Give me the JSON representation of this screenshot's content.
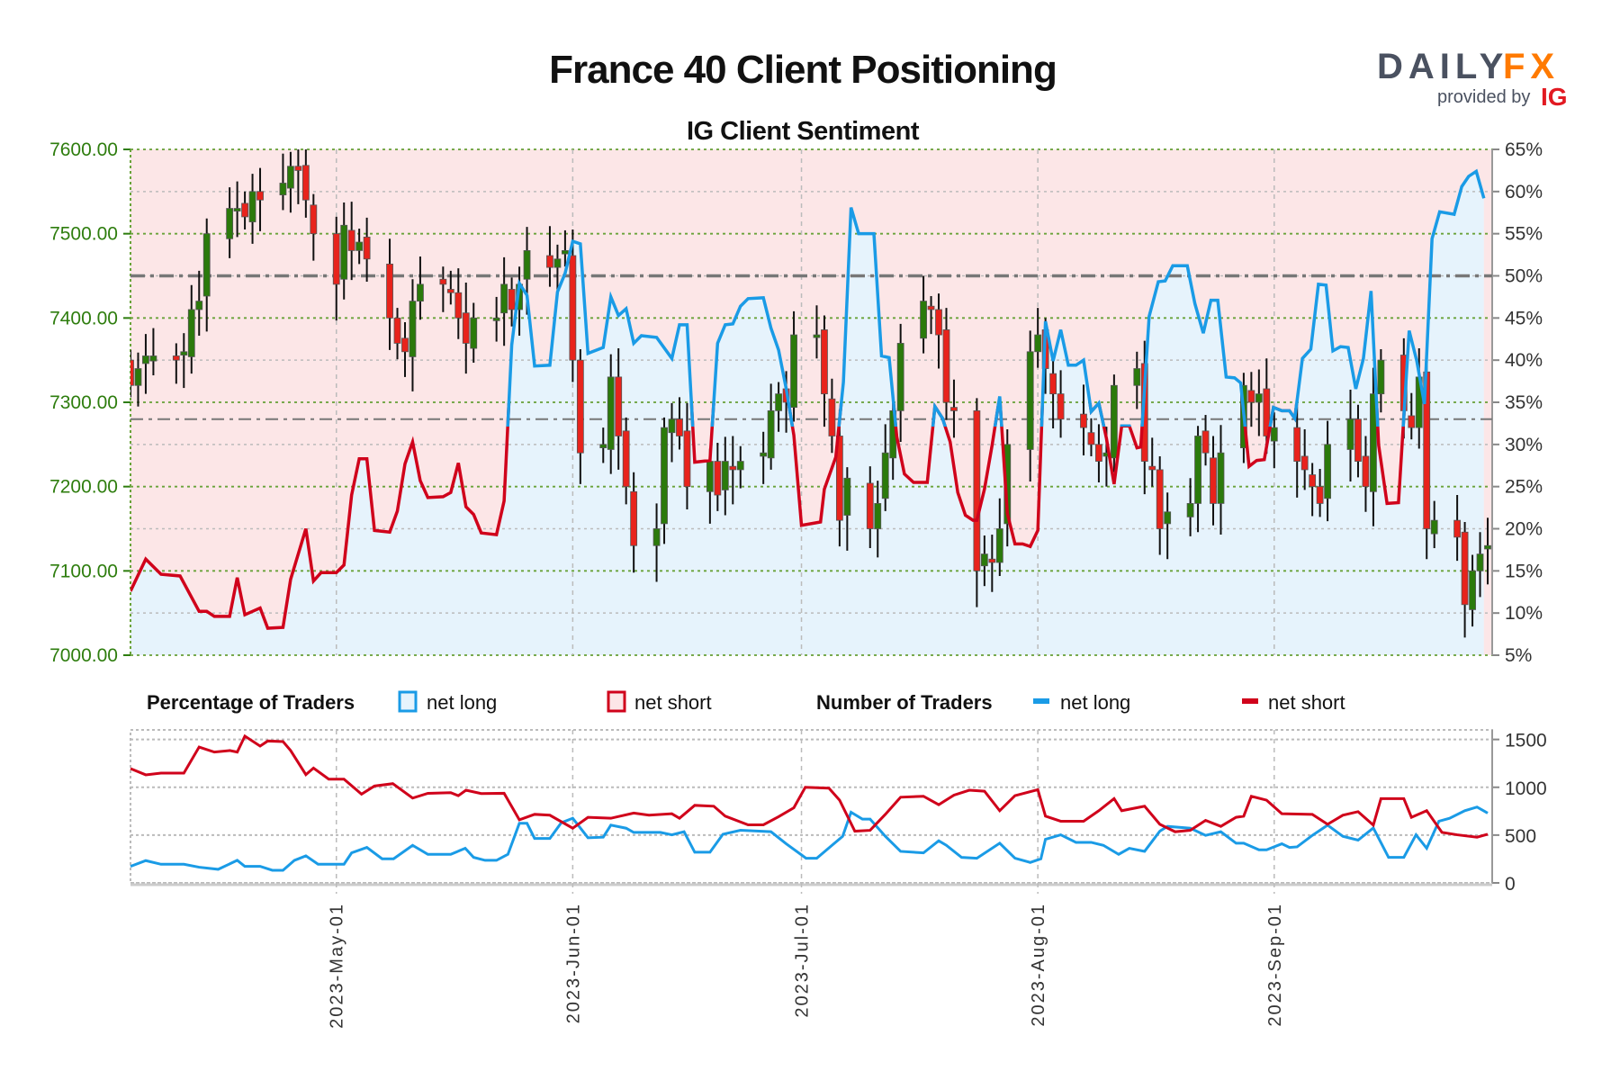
{
  "chart_data": {
    "type": "candlestick+line",
    "title": "France 40 Client Positioning",
    "subtitle": "IG Client Sentiment",
    "branding": {
      "logo_left": "DAILY",
      "logo_right": "FX",
      "provided_by": "provided by",
      "provider": "IG"
    },
    "colors": {
      "net_long": "#1a9be6",
      "net_short": "#d0021b",
      "long_fill": "#e6f3fc",
      "short_fill": "#fce6e7",
      "price_axis": "#2e7d0e",
      "up_candle": "#2b7a0b",
      "down_candle": "#e8231c"
    },
    "x_axis": {
      "start_date": "2023-04-04",
      "end_day": 178,
      "ticks": [
        {
          "label": "2023-May-01",
          "day": 27
        },
        {
          "label": "2023-Jun-01",
          "day": 58
        },
        {
          "label": "2023-Jul-01",
          "day": 88
        },
        {
          "label": "2023-Aug-01",
          "day": 119
        },
        {
          "label": "2023-Sep-01",
          "day": 150
        }
      ]
    },
    "price_axis": {
      "ylim": [
        7000,
        7600
      ],
      "ticks": [
        "7000.00",
        "7100.00",
        "7200.00",
        "7300.00",
        "7400.00",
        "7500.00",
        "7600.00"
      ],
      "reference_price": 7280
    },
    "percent_axis": {
      "ylim": [
        5,
        65
      ],
      "ticks": [
        "5%",
        "10%",
        "15%",
        "20%",
        "25%",
        "30%",
        "35%",
        "40%",
        "45%",
        "50%",
        "55%",
        "60%",
        "65%"
      ],
      "midline": 50
    },
    "candles_note": "daily closes on consecutive weekdays from start_date",
    "closes": [
      7320,
      7340,
      7355,
      7355,
      7350,
      7360,
      7410,
      7420,
      7500,
      7530,
      7530,
      7520,
      7550,
      7540,
      7560,
      7580,
      7575,
      7540,
      7500,
      7440,
      7510,
      7480,
      7490,
      7470,
      7400,
      7370,
      7360,
      7420,
      7440,
      7440,
      7430,
      7400,
      7370,
      7400,
      7400,
      7440,
      7410,
      7440,
      7480,
      7460,
      7470,
      7480,
      7350,
      7240,
      7250,
      7330,
      7260,
      7200,
      7130,
      7150,
      7270,
      7280,
      7260,
      7200,
      7230,
      7190,
      7230,
      7220,
      7230,
      7240,
      7290,
      7310,
      7300,
      7380,
      7380,
      7310,
      7260,
      7160,
      7210,
      7150,
      7180,
      7240,
      7290,
      7370,
      7420,
      7410,
      7380,
      7300,
      7290,
      7100,
      7120,
      7110,
      7150,
      7250,
      7360,
      7380,
      7340,
      7310,
      7280,
      7270,
      7250,
      7230,
      7240,
      7320,
      7340,
      7230,
      7220,
      7150,
      7170,
      7180,
      7260,
      7240,
      7180,
      7240,
      7320,
      7300,
      7310,
      7260,
      7270,
      7230,
      7220,
      7200,
      7180,
      7250,
      7280,
      7230,
      7200,
      7310,
      7350,
      7290,
      7270,
      7330,
      7150,
      7160,
      7140,
      7060,
      7100,
      7120,
      7130
    ],
    "net_long_pct": [
      [
        0,
        12.6
      ],
      [
        2,
        16.4
      ],
      [
        4,
        14.6
      ],
      [
        6.5,
        14.4
      ],
      [
        9,
        10.2
      ],
      [
        10,
        10.2
      ],
      [
        11,
        9.6
      ],
      [
        13,
        9.6
      ],
      [
        14,
        14.2
      ],
      [
        15,
        9.8
      ],
      [
        17,
        10.6
      ],
      [
        18,
        8.2
      ],
      [
        20,
        8.3
      ],
      [
        21,
        14
      ],
      [
        23,
        20
      ],
      [
        24,
        13.8
      ],
      [
        25,
        14.8
      ],
      [
        27,
        14.8
      ],
      [
        28,
        15.7
      ],
      [
        29,
        24
      ],
      [
        30,
        28.3
      ],
      [
        31,
        28.3
      ],
      [
        32,
        19.8
      ],
      [
        34,
        19.6
      ],
      [
        35,
        22.1
      ],
      [
        36,
        27.7
      ],
      [
        37,
        30.3
      ],
      [
        38,
        25.7
      ],
      [
        39,
        23.7
      ],
      [
        41,
        23.8
      ],
      [
        42,
        24.3
      ],
      [
        43,
        27.8
      ],
      [
        44,
        22.6
      ],
      [
        45,
        21.7
      ],
      [
        46,
        19.5
      ],
      [
        48,
        19.3
      ],
      [
        49,
        23.3
      ],
      [
        50,
        41.8
      ],
      [
        51,
        49.1
      ],
      [
        52,
        47.7
      ],
      [
        53,
        39.3
      ],
      [
        55,
        39.4
      ],
      [
        56,
        48.1
      ],
      [
        57,
        50.3
      ],
      [
        58,
        54.1
      ],
      [
        59,
        53.8
      ],
      [
        60,
        40.8
      ],
      [
        62,
        41.5
      ],
      [
        63,
        47.5
      ],
      [
        64,
        45.3
      ],
      [
        65,
        46.1
      ],
      [
        66,
        42
      ],
      [
        67,
        42.9
      ],
      [
        69,
        42.7
      ],
      [
        71,
        40.2
      ],
      [
        72,
        44.2
      ],
      [
        73,
        44.2
      ],
      [
        74,
        27.9
      ],
      [
        76,
        28.1
      ],
      [
        77,
        42
      ],
      [
        78,
        44.2
      ],
      [
        79,
        44.3
      ],
      [
        80,
        46.4
      ],
      [
        81,
        47.3
      ],
      [
        83,
        47.4
      ],
      [
        84,
        43.8
      ],
      [
        85,
        41.2
      ],
      [
        86,
        36.6
      ],
      [
        87,
        31.1
      ],
      [
        88,
        20.4
      ],
      [
        90.5,
        20.8
      ],
      [
        91,
        24.7
      ],
      [
        92.5,
        28.5
      ],
      [
        93.5,
        37.4
      ],
      [
        94.5,
        58.1
      ],
      [
        95.5,
        55
      ],
      [
        97.5,
        55
      ],
      [
        98.5,
        40.5
      ],
      [
        99.5,
        40.3
      ],
      [
        100.5,
        30.9
      ],
      [
        101.5,
        26.5
      ],
      [
        102.7,
        25.5
      ],
      [
        104.5,
        25.5
      ],
      [
        105.5,
        34.5
      ],
      [
        106.5,
        33.1
      ],
      [
        107.5,
        30.3
      ],
      [
        108.5,
        24.3
      ],
      [
        109.5,
        21.6
      ],
      [
        110.5,
        21
      ],
      [
        111,
        21
      ],
      [
        112,
        24.7
      ],
      [
        113,
        29.9
      ],
      [
        114,
        35.7
      ],
      [
        115,
        21.8
      ],
      [
        116,
        18.2
      ],
      [
        117,
        18.2
      ],
      [
        118,
        17.9
      ],
      [
        119,
        19.8
      ],
      [
        120,
        44.6
      ],
      [
        121,
        39.9
      ],
      [
        122,
        43.6
      ],
      [
        123,
        39.4
      ],
      [
        124,
        39.4
      ],
      [
        125,
        40
      ],
      [
        126,
        33.9
      ],
      [
        127,
        34.9
      ],
      [
        128,
        30.7
      ],
      [
        129,
        25.3
      ],
      [
        130,
        32.2
      ],
      [
        131,
        32.2
      ],
      [
        132,
        29.6
      ],
      [
        132.5,
        29.7
      ],
      [
        133.6,
        45.2
      ],
      [
        134.8,
        49.3
      ],
      [
        135.7,
        49.4
      ],
      [
        136.7,
        51.2
      ],
      [
        138.6,
        51.2
      ],
      [
        139.6,
        46.7
      ],
      [
        140.7,
        43.2
      ],
      [
        141.7,
        47.1
      ],
      [
        142.6,
        47.1
      ],
      [
        143.7,
        38
      ],
      [
        144.8,
        37.9
      ],
      [
        145.6,
        37.3
      ],
      [
        146.7,
        27.4
      ],
      [
        147.7,
        28.1
      ],
      [
        148.7,
        28.2
      ],
      [
        149.9,
        34.4
      ],
      [
        151,
        34
      ],
      [
        152,
        34
      ],
      [
        152.7,
        33.1
      ],
      [
        153.7,
        40.2
      ],
      [
        154.8,
        41.3
      ],
      [
        155.8,
        49
      ],
      [
        156.8,
        48.9
      ],
      [
        157.7,
        41.1
      ],
      [
        158.7,
        41.6
      ],
      [
        159.7,
        41.5
      ],
      [
        160.7,
        36.6
      ],
      [
        161.7,
        40.2
      ],
      [
        162.7,
        48.2
      ],
      [
        163.7,
        29.9
      ],
      [
        164.8,
        23
      ],
      [
        166.3,
        23.1
      ],
      [
        167.7,
        43.5
      ],
      [
        168.7,
        39.9
      ],
      [
        169.7,
        34.8
      ],
      [
        170.7,
        54.4
      ],
      [
        171.7,
        57.6
      ],
      [
        173.6,
        57.3
      ],
      [
        174.6,
        60.6
      ],
      [
        175.5,
        61.8
      ],
      [
        176.5,
        62.4
      ],
      [
        177.5,
        59.2
      ]
    ],
    "lower": {
      "title_pct": "Percentage of Traders",
      "title_num": "Number of Traders",
      "legend_long": "net long",
      "legend_short": "net short",
      "ylim": [
        0,
        1600
      ],
      "ticks": [
        "0",
        "500",
        "1000",
        "1500"
      ],
      "net_short": [
        [
          0,
          1195
        ],
        [
          2,
          1130
        ],
        [
          4,
          1148
        ],
        [
          7,
          1148
        ],
        [
          9,
          1421
        ],
        [
          11,
          1368
        ],
        [
          13,
          1384
        ],
        [
          14,
          1368
        ],
        [
          15,
          1535
        ],
        [
          17,
          1431
        ],
        [
          18,
          1484
        ],
        [
          20,
          1478
        ],
        [
          21,
          1384
        ],
        [
          23,
          1132
        ],
        [
          24,
          1201
        ],
        [
          26,
          1085
        ],
        [
          28,
          1085
        ],
        [
          30.3,
          928
        ],
        [
          32,
          1013
        ],
        [
          34.4,
          1038
        ],
        [
          37,
          887
        ],
        [
          39,
          937
        ],
        [
          42,
          944
        ],
        [
          43,
          912
        ],
        [
          44,
          969
        ],
        [
          46,
          934
        ],
        [
          49,
          937
        ],
        [
          51,
          660
        ],
        [
          53,
          717
        ],
        [
          55,
          708
        ],
        [
          58,
          572
        ],
        [
          60,
          686
        ],
        [
          63,
          676
        ],
        [
          66,
          730
        ],
        [
          68,
          708
        ],
        [
          71,
          723
        ],
        [
          72,
          676
        ],
        [
          74,
          811
        ],
        [
          76.5,
          802
        ],
        [
          78,
          698
        ],
        [
          81,
          607
        ],
        [
          83,
          607
        ],
        [
          85,
          692
        ],
        [
          87,
          786
        ],
        [
          88.5,
          1000
        ],
        [
          91.6,
          991
        ],
        [
          93,
          865
        ],
        [
          95,
          541
        ],
        [
          97,
          550
        ],
        [
          99,
          717
        ],
        [
          101,
          896
        ],
        [
          104,
          906
        ],
        [
          106,
          818
        ],
        [
          108,
          918
        ],
        [
          110,
          969
        ],
        [
          112,
          959
        ],
        [
          114,
          755
        ],
        [
          116,
          912
        ],
        [
          119,
          975
        ],
        [
          120,
          698
        ],
        [
          122,
          645
        ],
        [
          125,
          645
        ],
        [
          127,
          755
        ],
        [
          129,
          881
        ],
        [
          130,
          755
        ],
        [
          133,
          802
        ],
        [
          135,
          613
        ],
        [
          137,
          535
        ],
        [
          139,
          550
        ],
        [
          141,
          654
        ],
        [
          143,
          591
        ],
        [
          145,
          686
        ],
        [
          146,
          698
        ],
        [
          147,
          906
        ],
        [
          149,
          865
        ],
        [
          151,
          723
        ],
        [
          155,
          717
        ],
        [
          157,
          613
        ],
        [
          159,
          708
        ],
        [
          161,
          745
        ],
        [
          163,
          604
        ],
        [
          164,
          881
        ],
        [
          167,
          881
        ],
        [
          168,
          686
        ],
        [
          170,
          755
        ],
        [
          172,
          528
        ],
        [
          174,
          503
        ],
        [
          176.6,
          478
        ],
        [
          178,
          509
        ]
      ],
      "net_long": [
        [
          0,
          173
        ],
        [
          2,
          233
        ],
        [
          4,
          195
        ],
        [
          7,
          195
        ],
        [
          9,
          164
        ],
        [
          11.5,
          142
        ],
        [
          14,
          236
        ],
        [
          15,
          173
        ],
        [
          17,
          173
        ],
        [
          18.6,
          132
        ],
        [
          20,
          132
        ],
        [
          21.5,
          236
        ],
        [
          23,
          283
        ],
        [
          24.6,
          195
        ],
        [
          28,
          195
        ],
        [
          29,
          314
        ],
        [
          31,
          371
        ],
        [
          33,
          252
        ],
        [
          34.5,
          252
        ],
        [
          37,
          393
        ],
        [
          39,
          299
        ],
        [
          42,
          299
        ],
        [
          43.9,
          362
        ],
        [
          45,
          267
        ],
        [
          46.5,
          236
        ],
        [
          48,
          236
        ],
        [
          49.5,
          299
        ],
        [
          51,
          623
        ],
        [
          52,
          623
        ],
        [
          53,
          465
        ],
        [
          55,
          465
        ],
        [
          56.5,
          629
        ],
        [
          58,
          676
        ],
        [
          60,
          472
        ],
        [
          62,
          478
        ],
        [
          63,
          604
        ],
        [
          65,
          572
        ],
        [
          66,
          528
        ],
        [
          69.5,
          528
        ],
        [
          71,
          503
        ],
        [
          72.6,
          535
        ],
        [
          74,
          321
        ],
        [
          76,
          321
        ],
        [
          77.7,
          509
        ],
        [
          80,
          550
        ],
        [
          84,
          535
        ],
        [
          86,
          409
        ],
        [
          88.6,
          258
        ],
        [
          90,
          258
        ],
        [
          92,
          393
        ],
        [
          93.4,
          487
        ],
        [
          94.5,
          739
        ],
        [
          96,
          667
        ],
        [
          97,
          667
        ],
        [
          99,
          487
        ],
        [
          101,
          330
        ],
        [
          104,
          314
        ],
        [
          106,
          440
        ],
        [
          107,
          393
        ],
        [
          109,
          267
        ],
        [
          111,
          258
        ],
        [
          114,
          415
        ],
        [
          116,
          258
        ],
        [
          118,
          214
        ],
        [
          119.4,
          252
        ],
        [
          120,
          456
        ],
        [
          122,
          503
        ],
        [
          124,
          424
        ],
        [
          126,
          424
        ],
        [
          127.6,
          393
        ],
        [
          129.6,
          299
        ],
        [
          131,
          362
        ],
        [
          133,
          330
        ],
        [
          135,
          541
        ],
        [
          136,
          591
        ],
        [
          139,
          572
        ],
        [
          141,
          497
        ],
        [
          143,
          535
        ],
        [
          145,
          415
        ],
        [
          146,
          415
        ],
        [
          148,
          346
        ],
        [
          149,
          346
        ],
        [
          151,
          409
        ],
        [
          152,
          371
        ],
        [
          153,
          377
        ],
        [
          155,
          497
        ],
        [
          157,
          604
        ],
        [
          159,
          487
        ],
        [
          161,
          447
        ],
        [
          163,
          575
        ],
        [
          165,
          267
        ],
        [
          167,
          267
        ],
        [
          168.6,
          503
        ],
        [
          170,
          362
        ],
        [
          171.6,
          645
        ],
        [
          173,
          676
        ],
        [
          175,
          755
        ],
        [
          176.6,
          793
        ],
        [
          178,
          730
        ]
      ]
    }
  }
}
